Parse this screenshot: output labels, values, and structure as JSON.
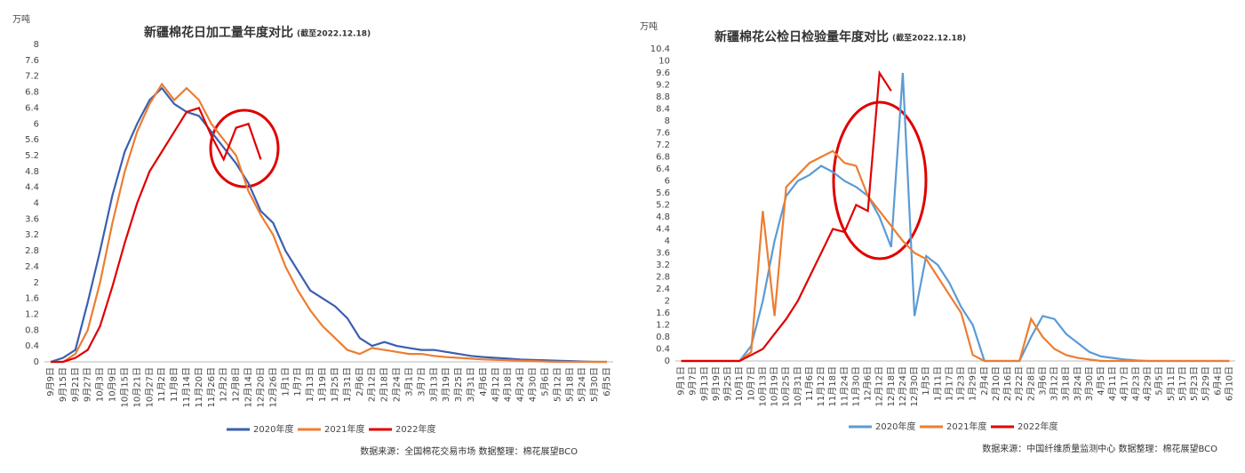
{
  "chart_data": [
    {
      "type": "line",
      "title": "新疆棉花日加工量年度对比",
      "subtitle": "(截至2022.12.18)",
      "y_label": "万吨",
      "source": "数据来源：全国棉花交易市场   数据整理：棉花展望BCO",
      "categories": [
        "9月9日",
        "9月15日",
        "9月21日",
        "9月27日",
        "10月3日",
        "10月9日",
        "10月15日",
        "10月21日",
        "10月27日",
        "11月2日",
        "11月8日",
        "11月14日",
        "11月20日",
        "11月26日",
        "12月2日",
        "12月8日",
        "12月14日",
        "12月20日",
        "12月26日",
        "1月1日",
        "1月7日",
        "1月13日",
        "1月19日",
        "1月25日",
        "1月31日",
        "2月6日",
        "2月12日",
        "2月18日",
        "2月24日",
        "3月1日",
        "3月7日",
        "3月13日",
        "3月19日",
        "3月25日",
        "3月31日",
        "4月6日",
        "4月12日",
        "4月18日",
        "4月24日",
        "4月30日",
        "5月6日",
        "5月12日",
        "5月18日",
        "5月24日",
        "5月30日",
        "6月5日"
      ],
      "series": [
        {
          "name": "2020年度",
          "color": "#3a5fb0",
          "values": [
            0,
            0.1,
            0.3,
            1.5,
            2.8,
            4.2,
            5.3,
            6.0,
            6.6,
            6.9,
            6.5,
            6.3,
            6.2,
            5.8,
            5.4,
            5.0,
            4.5,
            3.8,
            3.5,
            2.8,
            2.3,
            1.8,
            1.6,
            1.4,
            1.1,
            0.6,
            0.4,
            0.5,
            0.4,
            0.35,
            0.3,
            0.3,
            0.25,
            0.2,
            0.15,
            0.12,
            0.1,
            0.08,
            0.06,
            0.05,
            0.04,
            0.03,
            0.02,
            0.01,
            0,
            0
          ]
        },
        {
          "name": "2021年度",
          "color": "#ed7d31",
          "values": [
            0,
            0,
            0.2,
            0.8,
            2.0,
            3.5,
            4.8,
            5.8,
            6.5,
            7.0,
            6.6,
            6.9,
            6.6,
            6.0,
            5.6,
            5.2,
            4.3,
            3.7,
            3.2,
            2.4,
            1.8,
            1.3,
            0.9,
            0.6,
            0.3,
            0.2,
            0.35,
            0.3,
            0.25,
            0.2,
            0.2,
            0.15,
            0.12,
            0.1,
            0.08,
            0.06,
            0.05,
            0.04,
            0.03,
            0.02,
            0.01,
            0,
            0,
            0,
            0,
            0
          ]
        },
        {
          "name": "2022年度",
          "color": "#e00000",
          "values": [
            0,
            0,
            0.1,
            0.3,
            0.9,
            1.9,
            3.0,
            4.0,
            4.8,
            5.3,
            5.8,
            6.3,
            6.4,
            5.7,
            5.1,
            5.9,
            6.0,
            5.1,
            null,
            null,
            null,
            null,
            null,
            null,
            null,
            null,
            null,
            null,
            null,
            null,
            null,
            null,
            null,
            null,
            null,
            null,
            null,
            null,
            null,
            null,
            null,
            null,
            null,
            null,
            null,
            null
          ]
        }
      ],
      "ylim": [
        0,
        8
      ],
      "yticks": [
        0,
        0.4,
        0.8,
        1.2,
        1.6,
        2,
        2.4,
        2.8,
        3.2,
        3.6,
        4,
        4.4,
        4.8,
        5.2,
        5.6,
        6,
        6.4,
        6.8,
        7.2,
        7.6,
        8
      ],
      "grid": false
    },
    {
      "type": "line",
      "title": "新疆棉花公检日检验量年度对比",
      "subtitle": "(截至2022.12.18)",
      "y_label": "万吨",
      "source": "数据来源：中国纤维质量监测中心   数据整理：棉花展望BCO",
      "categories": [
        "9月1日",
        "9月7日",
        "9月13日",
        "9月19日",
        "9月25日",
        "10月1日",
        "10月7日",
        "10月13日",
        "10月19日",
        "10月25日",
        "10月31日",
        "11月6日",
        "11月12日",
        "11月18日",
        "11月24日",
        "11月30日",
        "12月6日",
        "12月12日",
        "12月18日",
        "12月24日",
        "12月30日",
        "1月5日",
        "1月11日",
        "1月17日",
        "1月23日",
        "1月29日",
        "2月4日",
        "2月10日",
        "2月16日",
        "2月22日",
        "2月28日",
        "3月6日",
        "3月12日",
        "3月18日",
        "3月24日",
        "3月30日",
        "4月5日",
        "4月11日",
        "4月17日",
        "4月23日",
        "4月29日",
        "5月5日",
        "5月11日",
        "5月17日",
        "5月23日",
        "5月29日",
        "6月4日",
        "6月10日"
      ],
      "series": [
        {
          "name": "2020年度",
          "color": "#5b9bd5",
          "values": [
            0,
            0,
            0,
            0,
            0,
            0,
            0.5,
            2.0,
            4.0,
            5.5,
            6.0,
            6.2,
            6.5,
            6.3,
            6.0,
            5.8,
            5.5,
            4.8,
            3.8,
            9.6,
            1.5,
            3.5,
            3.2,
            2.6,
            1.8,
            1.2,
            0,
            0,
            0,
            0,
            0.8,
            1.5,
            1.4,
            0.9,
            0.6,
            0.3,
            0.15,
            0.1,
            0.05,
            0.02,
            0,
            0,
            0,
            0,
            0,
            0,
            0,
            0
          ]
        },
        {
          "name": "2021年度",
          "color": "#ed7d31",
          "values": [
            0,
            0,
            0,
            0,
            0,
            0,
            0.3,
            5.0,
            1.5,
            5.8,
            6.2,
            6.6,
            6.8,
            7.0,
            6.6,
            6.5,
            5.5,
            5.0,
            4.5,
            4.0,
            3.6,
            3.4,
            2.8,
            2.2,
            1.6,
            0.2,
            0,
            0,
            0,
            0,
            1.4,
            0.8,
            0.4,
            0.2,
            0.1,
            0.05,
            0,
            0,
            0,
            0,
            0,
            0,
            0,
            0,
            0,
            0,
            0,
            0
          ]
        },
        {
          "name": "2022年度",
          "color": "#e00000",
          "values": [
            0,
            0,
            0,
            0,
            0,
            0,
            0.2,
            0.4,
            0.9,
            1.4,
            2.0,
            2.8,
            3.6,
            4.4,
            4.3,
            5.2,
            5.0,
            9.6,
            9.0,
            null,
            null,
            null,
            null,
            null,
            null,
            null,
            null,
            null,
            null,
            null,
            null,
            null,
            null,
            null,
            null,
            null,
            null,
            null,
            null,
            null,
            null,
            null,
            null,
            null,
            null,
            null,
            null,
            null
          ]
        }
      ],
      "ylim": [
        0,
        10.4
      ],
      "yticks": [
        0,
        0.4,
        0.8,
        1.2,
        1.6,
        2,
        2.4,
        2.8,
        3.2,
        3.6,
        4,
        4.4,
        4.8,
        5.2,
        5.6,
        6,
        6.4,
        6.8,
        7.2,
        7.6,
        8,
        8.4,
        8.8,
        9.2,
        9.6,
        10,
        10.4
      ],
      "grid": false
    }
  ]
}
